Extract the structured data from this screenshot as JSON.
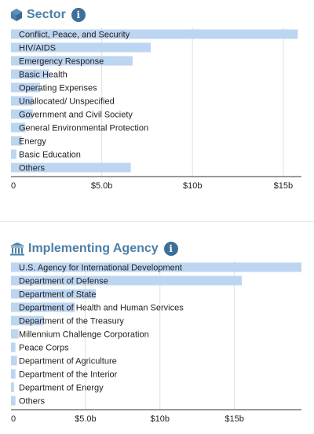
{
  "theme": {
    "accent": "#4a7fa8",
    "bar": "#bcd5f1",
    "grid": "#e0e0e0",
    "axis": "#333333",
    "info_bg": "#3c6f9a"
  },
  "panels": [
    {
      "title": "Sector",
      "icon": "cube-icon",
      "info_icon": "info-icon",
      "info_label": "i"
    },
    {
      "title": "Implementing Agency",
      "icon": "government-building-icon",
      "info_icon": "info-icon",
      "info_label": "i"
    }
  ],
  "chart_data": [
    {
      "type": "bar",
      "orientation": "horizontal",
      "categories": [
        "Conflict, Peace, and Security",
        "HIV/AIDS",
        "Emergency Response",
        "Basic Health",
        "Operating Expenses",
        "Unallocated/ Unspecified",
        "Government and Civil Society",
        "General Environmental Protection",
        "Energy",
        "Basic Education",
        "Others"
      ],
      "values": [
        15.8,
        7.7,
        6.7,
        2.1,
        1.6,
        1.2,
        1.2,
        0.8,
        0.6,
        0.3,
        6.6
      ],
      "xlim": [
        0,
        16
      ],
      "ticks": [
        0,
        5,
        10,
        15
      ],
      "tick_labels": [
        "0",
        "$5.0b",
        "$10b",
        "$15b"
      ],
      "grid": true
    },
    {
      "type": "bar",
      "orientation": "horizontal",
      "categories": [
        "U.S. Agency for International Development",
        "Department of Defense",
        "Department of State",
        "Department of Health and Human Services",
        "Department of the Treasury",
        "Millennium Challenge Corporation",
        "Peace Corps",
        "Department of Agriculture",
        "Department of the Interior",
        "Department of Energy",
        "Others"
      ],
      "values": [
        19.5,
        15.5,
        5.7,
        4.3,
        2.2,
        0.5,
        0.3,
        0.4,
        0.3,
        0.2,
        0.3
      ],
      "xlim": [
        0,
        19.5
      ],
      "ticks": [
        0,
        5,
        10,
        15
      ],
      "tick_labels": [
        "0",
        "$5.0b",
        "$10b",
        "$15b"
      ],
      "grid": true
    }
  ]
}
